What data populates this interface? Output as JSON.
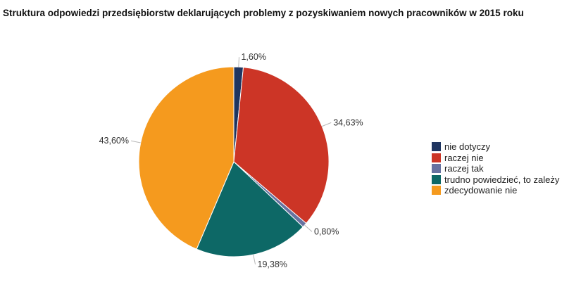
{
  "chart_data": {
    "type": "pie",
    "title": "Struktura odpowiedzi przedsiębiorstw deklarujących problemy z pozyskiwaniem nowych pracowników w 2015 roku",
    "slices": [
      {
        "name": "nie dotyczy",
        "value": 1.6,
        "label": "1,60%",
        "color": "#1f3560"
      },
      {
        "name": "raczej nie",
        "value": 34.63,
        "label": "34,63%",
        "color": "#cc3526"
      },
      {
        "name": "raczej tak",
        "value": 0.8,
        "label": "0,80%",
        "color": "#6772a0"
      },
      {
        "name": "trudno powiedzieć, to zależy",
        "value": 19.38,
        "label": "19,38%",
        "color": "#0d6866"
      },
      {
        "name": "zdecydowanie nie",
        "value": 43.6,
        "label": "43,60%",
        "color": "#f59a1e"
      }
    ],
    "legend_position": "right"
  }
}
